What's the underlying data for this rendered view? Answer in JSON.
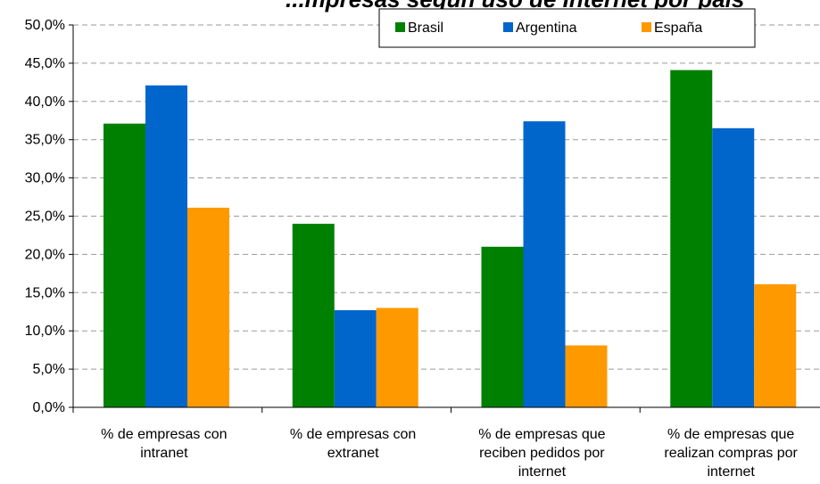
{
  "chart_data": {
    "type": "bar",
    "title": "...mpresas según uso de Internet por país",
    "xlabel": "",
    "ylabel": "",
    "ylim": [
      0,
      50
    ],
    "ytick_step": 5,
    "ytick_labels": [
      "0,0%",
      "5,0%",
      "10,0%",
      "15,0%",
      "20,0%",
      "25,0%",
      "30,0%",
      "35,0%",
      "40,0%",
      "45,0%",
      "50,0%"
    ],
    "grid": true,
    "legend_position": "top-right",
    "categories": [
      [
        "% de empresas con",
        "intranet"
      ],
      [
        "% de empresas con",
        "extranet"
      ],
      [
        "% de empresas que",
        "reciben pedidos por",
        "internet"
      ],
      [
        "% de empresas que",
        "realizan compras por",
        "internet"
      ]
    ],
    "series": [
      {
        "name": "Brasil",
        "color": "#008000",
        "values": [
          37.1,
          24.0,
          21.0,
          44.1
        ]
      },
      {
        "name": "Argentina",
        "color": "#0066CC",
        "values": [
          42.1,
          12.7,
          37.4,
          36.5
        ]
      },
      {
        "name": "España",
        "color": "#FF9900",
        "values": [
          26.1,
          13.0,
          8.1,
          16.1
        ]
      }
    ]
  }
}
